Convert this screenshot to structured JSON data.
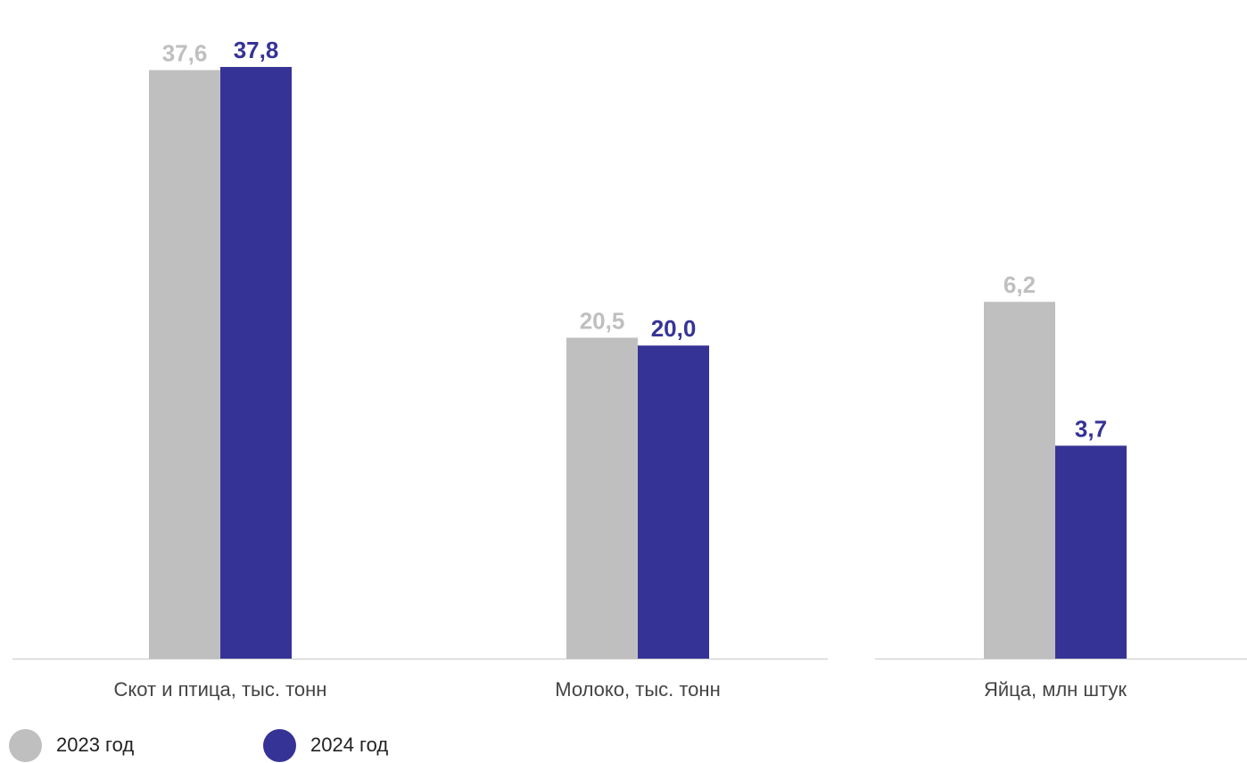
{
  "chart_data": {
    "type": "bar",
    "categories": [
      "Скот и птица, тыс. тонн",
      "Молоко, тыс. тонн",
      "Яйца, млн штук"
    ],
    "series": [
      {
        "name": "2023 год",
        "values": [
          37.6,
          20.5,
          6.2
        ],
        "labels": [
          "37,6",
          "20,5",
          "6,2"
        ],
        "color": "#bfbfbf"
      },
      {
        "name": "2024 год",
        "values": [
          37.8,
          20.0,
          3.7
        ],
        "labels": [
          "37,8",
          "20,0",
          "3,7"
        ],
        "color": "#363396"
      }
    ],
    "groups": [
      {
        "categories": [
          0,
          1
        ],
        "ylim": [
          0,
          38.6
        ]
      },
      {
        "categories": [
          2
        ],
        "ylim": [
          0,
          10.5
        ]
      }
    ],
    "grid": false,
    "legend_position": "bottom-left"
  }
}
